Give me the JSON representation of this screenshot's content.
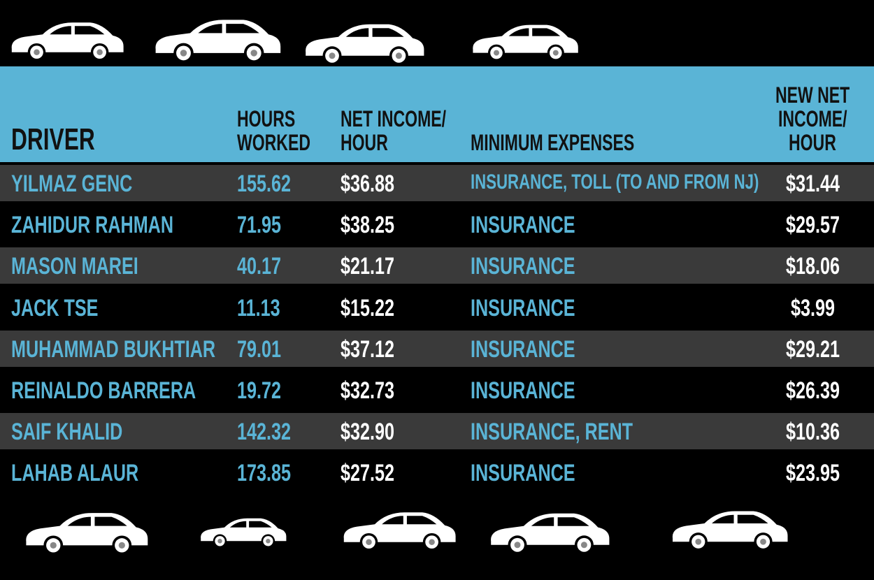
{
  "table": {
    "headers": [
      [
        "DRIVER"
      ],
      [
        "HOURS",
        "WORKED"
      ],
      [
        "NET INCOME/",
        "HOUR"
      ],
      [
        "MINIMUM EXPENSES"
      ],
      [
        "NEW NET",
        "INCOME/",
        "HOUR"
      ]
    ],
    "rows": [
      [
        "YILMAZ GENC",
        "155.62",
        "$36.88",
        "INSURANCE, TOLL (TO AND FROM NJ)",
        "$31.44"
      ],
      [
        "ZAHIDUR RAHMAN",
        "71.95",
        "$38.25",
        "INSURANCE",
        "$29.57"
      ],
      [
        "MASON MAREI",
        "40.17",
        "$21.17",
        "INSURANCE",
        "$18.06"
      ],
      [
        "JACK TSE",
        "11.13",
        "$15.22",
        "INSURANCE",
        "$3.99"
      ],
      [
        "MUHAMMAD BUKHTIAR",
        "79.01",
        "$37.12",
        "INSURANCE",
        "$29.21"
      ],
      [
        "REINALDO BARRERA",
        "19.72",
        "$32.73",
        "INSURANCE",
        "$26.39"
      ],
      [
        "SAIF KHALID",
        "142.32",
        "$32.90",
        "INSURANCE, RENT",
        "$10.36"
      ],
      [
        "LAHAB ALAUR",
        "173.85",
        "$27.52",
        "INSURANCE",
        "$23.95"
      ]
    ]
  }
}
